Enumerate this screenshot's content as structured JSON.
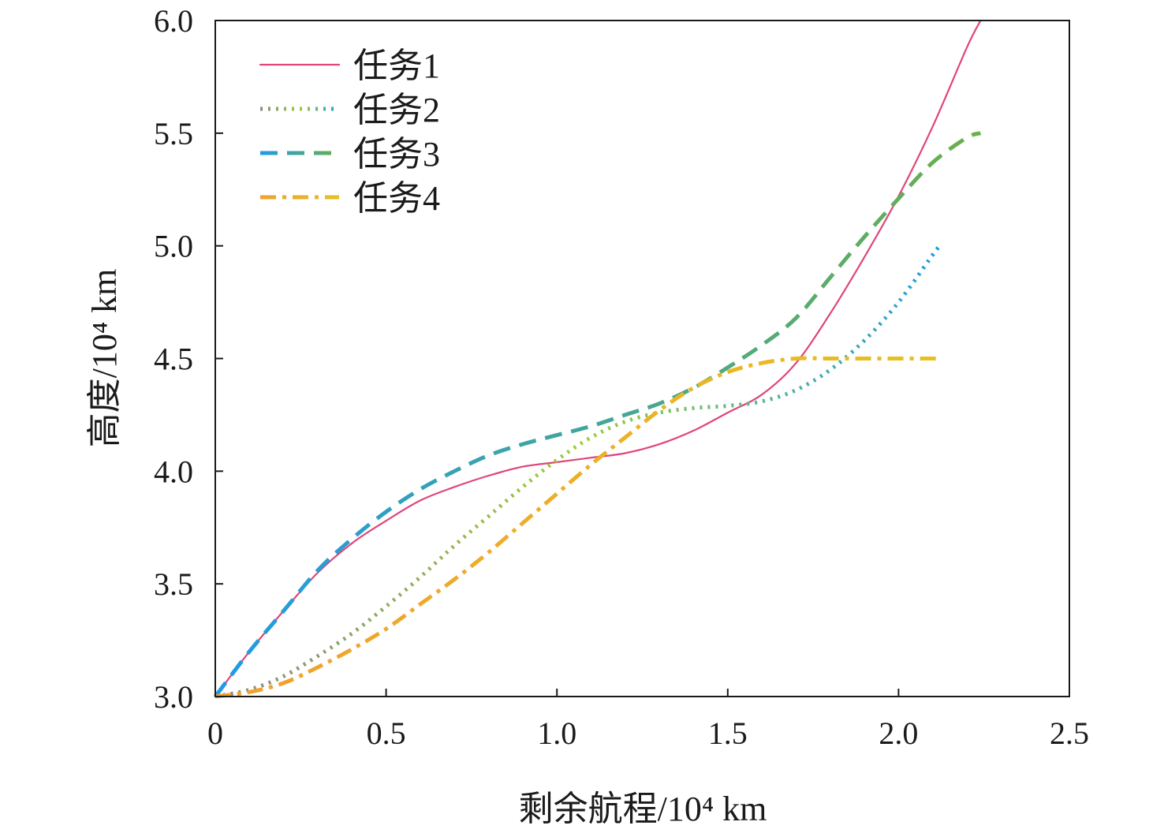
{
  "chart_data": {
    "type": "line",
    "title": "",
    "xlabel": "剩余航程/10⁴ km",
    "ylabel": "高度/10⁴ km",
    "xlim": [
      0,
      2.5
    ],
    "ylim": [
      3.0,
      6.0
    ],
    "xticks": [
      0,
      0.5,
      1.0,
      1.5,
      2.0,
      2.5
    ],
    "xtick_labels": [
      "0",
      "0.5",
      "1.0",
      "1.5",
      "2.0",
      "2.5"
    ],
    "yticks": [
      3.0,
      3.5,
      4.0,
      4.5,
      5.0,
      5.5,
      6.0
    ],
    "ytick_labels": [
      "3.0",
      "3.5",
      "4.0",
      "4.5",
      "5.0",
      "5.5",
      "6.0"
    ],
    "grid": false,
    "legend_position": "top-left",
    "series": [
      {
        "name": "任务1",
        "style": "solid",
        "color": "#e0457b",
        "x": [
          0,
          0.1,
          0.2,
          0.3,
          0.4,
          0.5,
          0.6,
          0.7,
          0.8,
          0.9,
          1.0,
          1.1,
          1.2,
          1.3,
          1.4,
          1.5,
          1.6,
          1.7,
          1.8,
          1.9,
          2.0,
          2.1,
          2.2,
          2.24
        ],
        "y": [
          3.0,
          3.2,
          3.38,
          3.55,
          3.68,
          3.78,
          3.87,
          3.93,
          3.98,
          4.02,
          4.04,
          4.06,
          4.08,
          4.12,
          4.18,
          4.26,
          4.34,
          4.48,
          4.7,
          4.95,
          5.22,
          5.53,
          5.88,
          6.0
        ]
      },
      {
        "name": "任务2",
        "style": "dotted",
        "colors": [
          "#888888",
          "#9acd32",
          "#1e9be6"
        ],
        "x": [
          0,
          0.1,
          0.2,
          0.3,
          0.4,
          0.5,
          0.6,
          0.7,
          0.8,
          0.9,
          1.0,
          1.1,
          1.2,
          1.3,
          1.4,
          1.5,
          1.6,
          1.7,
          1.8,
          1.9,
          2.0,
          2.1,
          2.12
        ],
        "y": [
          3.0,
          3.03,
          3.09,
          3.18,
          3.28,
          3.4,
          3.53,
          3.67,
          3.8,
          3.93,
          4.05,
          4.15,
          4.22,
          4.26,
          4.28,
          4.29,
          4.31,
          4.36,
          4.45,
          4.58,
          4.75,
          4.96,
          5.0
        ]
      },
      {
        "name": "任务3",
        "style": "dashed",
        "colors": [
          "#1e9be6",
          "#6ab04c"
        ],
        "x": [
          0,
          0.1,
          0.2,
          0.3,
          0.4,
          0.5,
          0.6,
          0.7,
          0.8,
          0.9,
          1.0,
          1.1,
          1.2,
          1.3,
          1.4,
          1.5,
          1.6,
          1.7,
          1.8,
          1.9,
          2.0,
          2.1,
          2.2,
          2.24
        ],
        "y": [
          3.0,
          3.2,
          3.38,
          3.56,
          3.7,
          3.82,
          3.92,
          4.0,
          4.07,
          4.12,
          4.16,
          4.2,
          4.25,
          4.3,
          4.37,
          4.46,
          4.56,
          4.68,
          4.86,
          5.04,
          5.21,
          5.37,
          5.48,
          5.5
        ]
      },
      {
        "name": "任务4",
        "style": "dashdot",
        "colors": [
          "#f0a030",
          "#e8c020"
        ],
        "x": [
          0,
          0.1,
          0.2,
          0.3,
          0.4,
          0.5,
          0.6,
          0.7,
          0.8,
          0.9,
          1.0,
          1.1,
          1.2,
          1.3,
          1.4,
          1.5,
          1.6,
          1.7,
          1.8,
          1.9,
          2.0,
          2.1,
          2.12
        ],
        "y": [
          3.0,
          3.02,
          3.06,
          3.13,
          3.21,
          3.3,
          3.41,
          3.52,
          3.64,
          3.77,
          3.9,
          4.03,
          4.15,
          4.27,
          4.37,
          4.44,
          4.48,
          4.5,
          4.5,
          4.5,
          4.5,
          4.5,
          4.5
        ]
      }
    ]
  }
}
